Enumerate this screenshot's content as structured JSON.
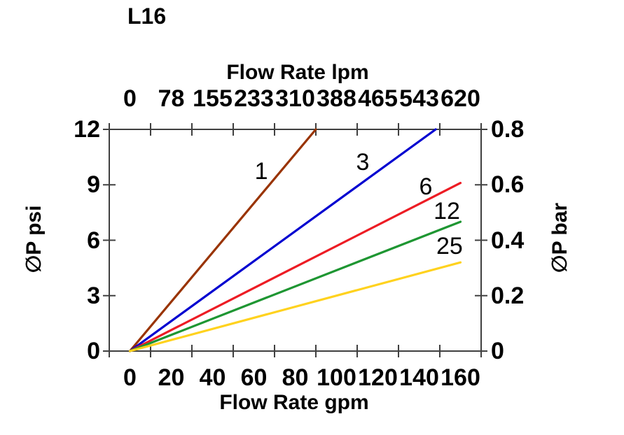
{
  "chart_data": {
    "type": "line",
    "title": "L16",
    "xlabel_top": "Flow Rate lpm",
    "xlabel_bottom": "Flow Rate gpm",
    "ylabel_left": "∅P psi",
    "ylabel_right": "∅P bar",
    "x_range_gpm": [
      0,
      160
    ],
    "y_range_psi": [
      0,
      12
    ],
    "x_ticks_gpm": [
      "0",
      "20",
      "40",
      "60",
      "80",
      "100",
      "120",
      "140",
      "160"
    ],
    "x_ticks_lpm": [
      "0",
      "78",
      "155",
      "233",
      "310",
      "388",
      "465",
      "543",
      "620"
    ],
    "y_ticks_psi": [
      "0",
      "3",
      "6",
      "9",
      "12"
    ],
    "y_ticks_bar": [
      "0",
      "0.2",
      "0.4",
      "0.6",
      "0.8"
    ],
    "grid": false,
    "legend": "inline-labels",
    "axis_color": "#404040",
    "series": [
      {
        "name": "1",
        "color": "#993300",
        "points_gpm_psi": [
          [
            0,
            0
          ],
          [
            90,
            12
          ]
        ],
        "label_pos_gpm_psi": [
          63.6,
          9.73
        ]
      },
      {
        "name": "3",
        "color": "#0000D0",
        "points_gpm_psi": [
          [
            0,
            0
          ],
          [
            148,
            12
          ]
        ],
        "label_pos_gpm_psi": [
          112.7,
          10.22
        ]
      },
      {
        "name": "6",
        "color": "#ED1C24",
        "points_gpm_psi": [
          [
            0,
            0
          ],
          [
            160,
            9.1
          ]
        ],
        "label_pos_gpm_psi": [
          143.2,
          8.9
        ]
      },
      {
        "name": "12",
        "color": "#1E9632",
        "points_gpm_psi": [
          [
            0,
            0
          ],
          [
            160,
            7.0
          ]
        ],
        "label_pos_gpm_psi": [
          153.4,
          7.57
        ]
      },
      {
        "name": "25",
        "color": "#FFD21E",
        "points_gpm_psi": [
          [
            0,
            0
          ],
          [
            160,
            4.8
          ]
        ],
        "label_pos_gpm_psi": [
          154.7,
          5.68
        ]
      }
    ]
  }
}
